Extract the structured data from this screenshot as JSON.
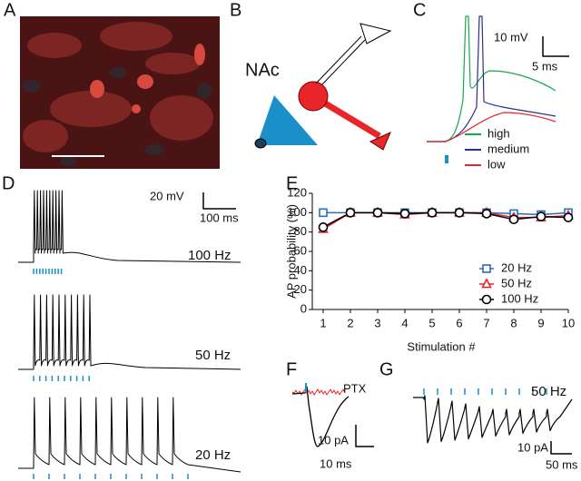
{
  "panels": {
    "labels": [
      "A",
      "B",
      "C",
      "D",
      "E",
      "F",
      "G"
    ]
  },
  "panel_b": {
    "region": "NAc"
  },
  "panel_c": {
    "scale_y": "10 mV",
    "scale_x": "5 ms",
    "legend": [
      "high",
      "medium",
      "low"
    ]
  },
  "panel_d": {
    "scale_y": "20 mV",
    "scale_x": "100 ms",
    "traces": [
      "100 Hz",
      "50 Hz",
      "20 Hz"
    ]
  },
  "panel_f": {
    "label": "PTX",
    "scale_y": "10 pA",
    "scale_x": "10 ms"
  },
  "panel_g": {
    "label": "50 Hz",
    "scale_y": "10 pA",
    "scale_x": "50 ms"
  },
  "chart_data": {
    "type": "line",
    "x_label": "Stimulation #",
    "y_label": "AP probability (%)",
    "x": [
      1,
      2,
      3,
      4,
      5,
      6,
      7,
      8,
      9,
      10
    ],
    "xlim": [
      0.6,
      10
    ],
    "xticks": [
      1,
      2,
      3,
      4,
      5,
      6,
      7,
      8,
      9,
      10
    ],
    "ylim": [
      0,
      120
    ],
    "yticks": [
      0,
      20,
      40,
      60,
      80,
      100,
      120
    ],
    "legend": "lower right",
    "series": [
      {
        "name": "20 Hz",
        "color": "#2a6ebb",
        "marker": "square",
        "values": [
          100,
          100,
          100,
          100,
          100,
          100,
          100,
          99,
          98,
          100
        ]
      },
      {
        "name": "50 Hz",
        "color": "#e8262a",
        "marker": "triangle",
        "values": [
          83,
          100,
          100,
          98,
          100,
          100,
          100,
          95,
          95,
          97
        ]
      },
      {
        "name": "100 Hz",
        "color": "#000000",
        "marker": "circle",
        "values": [
          85,
          100,
          100,
          99,
          100,
          100,
          99,
          93,
          96,
          95
        ]
      }
    ]
  }
}
